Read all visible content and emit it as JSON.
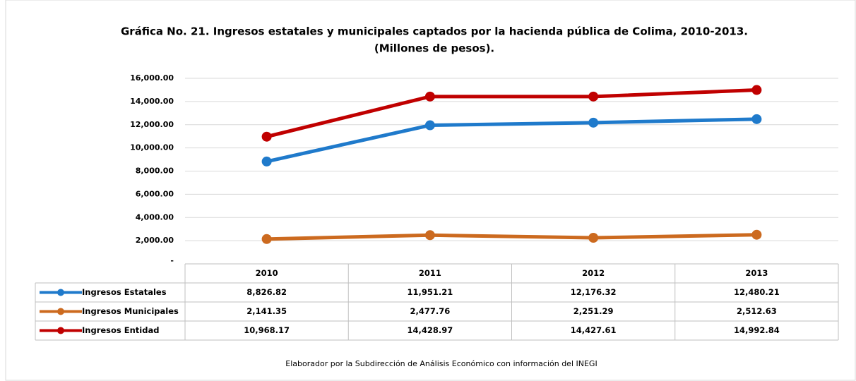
{
  "chart_data": {
    "type": "line",
    "title": "Gráfica No. 21. Ingresos estatales y municipales captados por la hacienda pública de Colima, 2010-2013.",
    "subtitle": "(Millones de pesos).",
    "source": "Elaborador por la Subdirección de Análisis Económico con información del INEGI",
    "categories": [
      "2010",
      "2011",
      "2012",
      "2013"
    ],
    "series": [
      {
        "name": "Ingresos Estatales",
        "color": "#1f7acb",
        "values": [
          8826.82,
          11951.21,
          12176.32,
          12480.21
        ],
        "value_labels": [
          "8,826.82",
          "11,951.21",
          "12,176.32",
          "12,480.21"
        ]
      },
      {
        "name": "Ingresos Municipales",
        "color": "#cc6a1f",
        "values": [
          2141.35,
          2477.76,
          2251.29,
          2512.63
        ],
        "value_labels": [
          "2,141.35",
          "2,477.76",
          "2,251.29",
          "2,512.63"
        ]
      },
      {
        "name": "Ingresos Entidad",
        "color": "#c00000",
        "values": [
          10968.17,
          14428.97,
          14427.61,
          14992.84
        ],
        "value_labels": [
          "10,968.17",
          "14,428.97",
          "14,427.61",
          "14,992.84"
        ]
      }
    ],
    "ylim": [
      0,
      16000
    ],
    "yticks": [
      {
        "value": 0,
        "label": "-"
      },
      {
        "value": 2000,
        "label": "2,000.00"
      },
      {
        "value": 4000,
        "label": "4,000.00"
      },
      {
        "value": 6000,
        "label": "6,000.00"
      },
      {
        "value": 8000,
        "label": "8,000.00"
      },
      {
        "value": 10000,
        "label": "10,000.00"
      },
      {
        "value": 12000,
        "label": "12,000.00"
      },
      {
        "value": 14000,
        "label": "14,000.00"
      },
      {
        "value": 16000,
        "label": "16,000.00"
      }
    ],
    "grid": true
  }
}
